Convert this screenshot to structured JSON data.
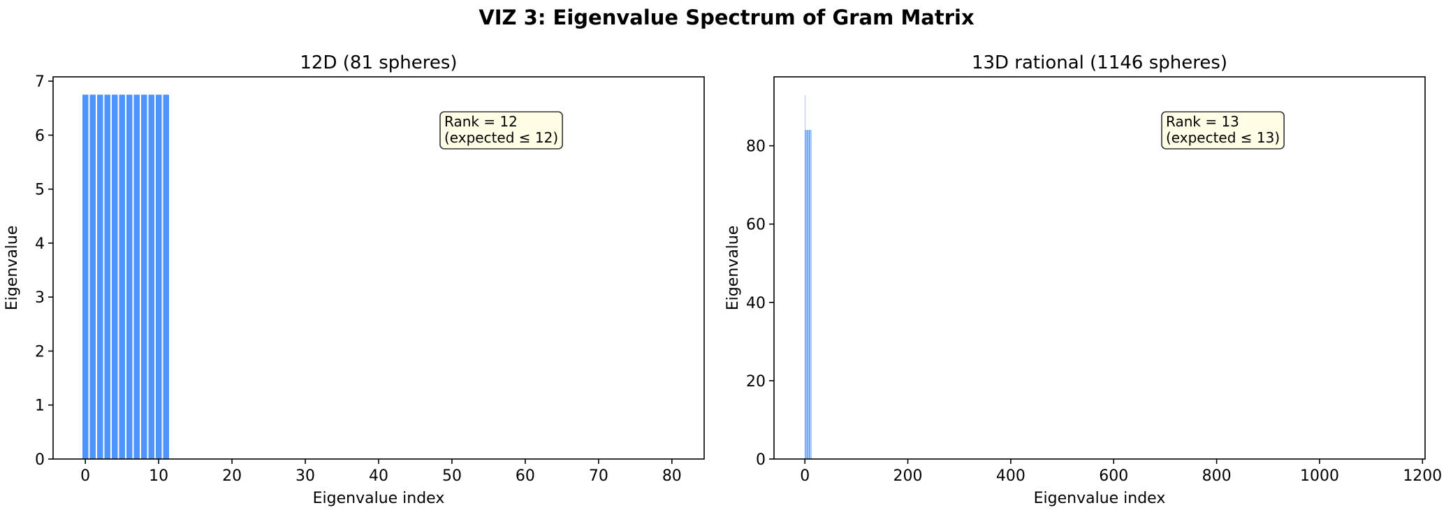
{
  "suptitle": "VIZ 3: Eigenvalue Spectrum of Gram Matrix",
  "colors": {
    "bar": "#4d94ff",
    "annotation_fill": "#fffde6",
    "annotation_edge": "#333333"
  },
  "chart_data": [
    {
      "type": "bar",
      "title": "12D (81 spheres)",
      "xlabel": "Eigenvalue index",
      "ylabel": "Eigenvalue",
      "xlim": [
        -4.4,
        84.4
      ],
      "ylim": [
        0,
        7.08
      ],
      "xticks": [
        0,
        10,
        20,
        30,
        40,
        50,
        60,
        70,
        80
      ],
      "yticks": [
        0,
        1,
        2,
        3,
        4,
        5,
        6,
        7
      ],
      "grid": false,
      "n": 81,
      "values": [
        6.75,
        6.75,
        6.75,
        6.75,
        6.75,
        6.75,
        6.75,
        6.75,
        6.75,
        6.75,
        6.75,
        6.75
      ],
      "remaining_values": 0,
      "annotation": {
        "line1": "Rank = 12",
        "line2": "(expected ≤ 12)",
        "position": "top-right"
      }
    },
    {
      "type": "bar",
      "title": "13D rational (1146 spheres)",
      "xlabel": "Eigenvalue index",
      "ylabel": "Eigenvalue",
      "xlim": [
        -60,
        1205
      ],
      "ylim": [
        0,
        97.6
      ],
      "xticks": [
        0,
        200,
        400,
        600,
        800,
        1000,
        1200
      ],
      "yticks": [
        0,
        20,
        40,
        60,
        80
      ],
      "grid": false,
      "n": 1146,
      "values": [
        93,
        84,
        84,
        84,
        84,
        84,
        84,
        84,
        84,
        84,
        84,
        84,
        84
      ],
      "remaining_values": 0,
      "annotation": {
        "line1": "Rank = 13",
        "line2": "(expected ≤ 13)",
        "position": "top-right"
      }
    }
  ]
}
